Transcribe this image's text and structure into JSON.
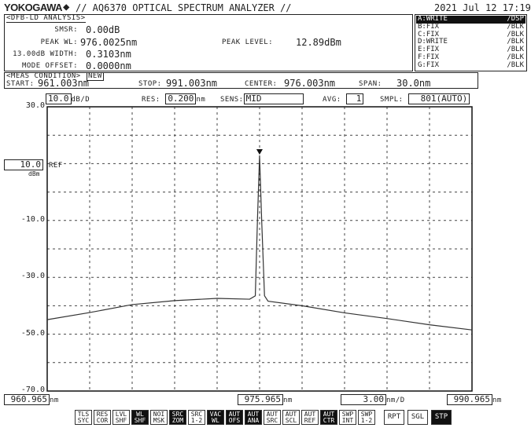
{
  "header": {
    "brand": "YOKOGAWA",
    "title": "// AQ6370 OPTICAL SPECTRUM ANALYZER //",
    "datetime": "2021 Jul 12 17:19"
  },
  "analysis": {
    "title": "<DFB-LD ANALYSIS>",
    "rows": [
      {
        "label": "SMSR:",
        "value": "0.00dB"
      },
      {
        "label": "PEAK WL:",
        "value": "976.0025nm"
      },
      {
        "label": "13.00dB WIDTH:",
        "value": "0.3103nm"
      },
      {
        "label": "MODE OFFSET:",
        "value": "0.0000nm"
      }
    ],
    "peak_level_label": "PEAK LEVEL:",
    "peak_level_value": "12.89dBm"
  },
  "traces": [
    {
      "name": "A:WRITE",
      "mode": "/DSP",
      "active": true
    },
    {
      "name": "B:FIX",
      "mode": "/BLK"
    },
    {
      "name": "C:FIX",
      "mode": "/BLK"
    },
    {
      "name": "D:WRITE",
      "mode": "/BLK"
    },
    {
      "name": "E:FIX",
      "mode": "/BLK"
    },
    {
      "name": "F:FIX",
      "mode": "/BLK"
    },
    {
      "name": "G:FIX",
      "mode": "/BLK"
    }
  ],
  "meas": {
    "title": "<MEAS CONDITION>",
    "new_label": "NEW",
    "start_label": "START:",
    "start": "961.003nm",
    "stop_label": "STOP:",
    "stop": "991.003nm",
    "center_label": "CENTER:",
    "center": "976.003nm",
    "span_label": "SPAN:",
    "span": "30.0nm"
  },
  "settings": {
    "scale": "10.0",
    "scale_unit": "dB/D",
    "res_label": "RES:",
    "res": "0.200",
    "res_unit": "nm",
    "sens_label": "SENS:",
    "sens": "MID",
    "avg_label": "AVG:",
    "avg": "1",
    "smpl_label": "SMPL:",
    "smpl": "801(AUTO)"
  },
  "ref": {
    "value": "10.0",
    "label": "REF",
    "unit": "dBm"
  },
  "xaxis": {
    "left": "960.965",
    "center": "975.965",
    "scale": "3.00",
    "scale_unit": "nm/D",
    "right": "990.965",
    "unit": "nm"
  },
  "buttons": [
    {
      "label": "TLS SYC",
      "on": false
    },
    {
      "label": "RES COR",
      "on": false
    },
    {
      "label": "LVL SHF",
      "on": false
    },
    {
      "label": "WL SHF",
      "on": true
    },
    {
      "label": "NOI MSK",
      "on": false
    },
    {
      "label": "SRC ZOM",
      "on": true
    },
    {
      "label": "SRC 1-2",
      "on": false
    },
    {
      "label": "VAC WL",
      "on": true
    },
    {
      "label": "AUT OFS",
      "on": true
    },
    {
      "label": "AUT ANA",
      "on": true
    },
    {
      "label": "AUT SRC",
      "on": false
    },
    {
      "label": "AUT SCL",
      "on": false
    },
    {
      "label": "AUT REF",
      "on": false
    },
    {
      "label": "AUT CTR",
      "on": true
    },
    {
      "label": "SWP INT",
      "on": false
    },
    {
      "label": "SWP 1-2",
      "on": false
    },
    {
      "label": "RPT",
      "on": false
    },
    {
      "label": "SGL",
      "on": false
    },
    {
      "label": "STP",
      "on": true
    }
  ],
  "chart_data": {
    "type": "line",
    "xlabel": "",
    "ylabel": "",
    "xlim": [
      961.003,
      991.003
    ],
    "ylim": [
      -70,
      30
    ],
    "y_ticks": [
      "30.0",
      "10.0",
      "-10.0",
      "-30.0",
      "-50.0",
      "-70.0"
    ],
    "y_tick_values": [
      30,
      10,
      -10,
      -30,
      -50,
      -70
    ],
    "grid": true,
    "x_divisions": 10,
    "y_divisions": 10,
    "trace_color": "#333333",
    "x": [
      961.0,
      964.0,
      967.0,
      970.0,
      973.0,
      975.3,
      975.7,
      975.85,
      976.0,
      976.15,
      976.35,
      976.6,
      979.0,
      982.0,
      985.0,
      988.0,
      991.0
    ],
    "y": [
      -44.9,
      -42.4,
      -39.6,
      -38.2,
      -37.4,
      -37.7,
      -36.5,
      -10,
      12.89,
      -10,
      -36.5,
      -38.4,
      -40.0,
      -42.5,
      -44.5,
      -46.7,
      -48.5
    ]
  }
}
